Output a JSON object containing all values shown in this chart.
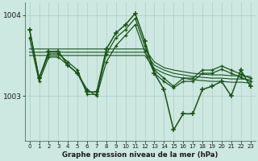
{
  "title": "Graphe pression niveau de la mer (hPa)",
  "bg_color": "#cce8e0",
  "line_color": "#1a5218",
  "grid_color_v": "#aacfc8",
  "grid_color_h": "#aacfc8",
  "ylim": [
    1002.45,
    1004.15
  ],
  "xlim": [
    -0.5,
    23.5
  ],
  "yticks": [
    1003,
    1004
  ],
  "xticks": [
    0,
    1,
    2,
    3,
    4,
    5,
    6,
    7,
    8,
    9,
    10,
    11,
    12,
    13,
    14,
    15,
    16,
    17,
    18,
    19,
    20,
    21,
    22,
    23
  ],
  "series1": [
    1003.82,
    1003.22,
    1003.52,
    1003.52,
    1003.42,
    1003.32,
    1003.02,
    1003.02,
    1003.52,
    1003.72,
    1003.82,
    1003.96,
    1003.62,
    1003.32,
    1003.22,
    1003.12,
    1003.22,
    1003.22,
    1003.32,
    1003.32,
    1003.37,
    1003.32,
    1003.27,
    1003.22
  ],
  "series2": [
    1003.72,
    1003.18,
    1003.48,
    1003.48,
    1003.38,
    1003.28,
    1003.08,
    1003.0,
    1003.42,
    1003.62,
    1003.75,
    1003.88,
    1003.55,
    1003.28,
    1003.18,
    1003.1,
    1003.18,
    1003.18,
    1003.28,
    1003.28,
    1003.33,
    1003.28,
    1003.23,
    1003.18
  ],
  "series3_flat1": [
    1003.58,
    1003.58,
    1003.58,
    1003.58,
    1003.58,
    1003.58,
    1003.58,
    1003.58,
    1003.58,
    1003.58,
    1003.58,
    1003.58,
    1003.58,
    1003.42,
    1003.35,
    1003.32,
    1003.3,
    1003.28,
    1003.27,
    1003.26,
    1003.26,
    1003.25,
    1003.25,
    1003.24
  ],
  "series3_flat2": [
    1003.54,
    1003.54,
    1003.54,
    1003.54,
    1003.54,
    1003.54,
    1003.54,
    1003.54,
    1003.54,
    1003.54,
    1003.54,
    1003.54,
    1003.54,
    1003.38,
    1003.32,
    1003.28,
    1003.26,
    1003.24,
    1003.23,
    1003.22,
    1003.22,
    1003.21,
    1003.21,
    1003.2
  ],
  "series3_flat3": [
    1003.5,
    1003.5,
    1003.5,
    1003.5,
    1003.5,
    1003.5,
    1003.5,
    1003.5,
    1003.5,
    1003.5,
    1003.5,
    1003.5,
    1003.5,
    1003.34,
    1003.28,
    1003.24,
    1003.22,
    1003.2,
    1003.19,
    1003.18,
    1003.18,
    1003.17,
    1003.17,
    1003.16
  ],
  "main_series": [
    1003.82,
    1003.22,
    1003.55,
    1003.55,
    1003.38,
    1003.28,
    1003.05,
    1003.05,
    1003.58,
    1003.78,
    1003.88,
    1004.02,
    1003.68,
    1003.28,
    1003.08,
    1002.58,
    1002.78,
    1002.78,
    1003.08,
    1003.12,
    1003.18,
    1003.0,
    1003.32,
    1003.12
  ]
}
